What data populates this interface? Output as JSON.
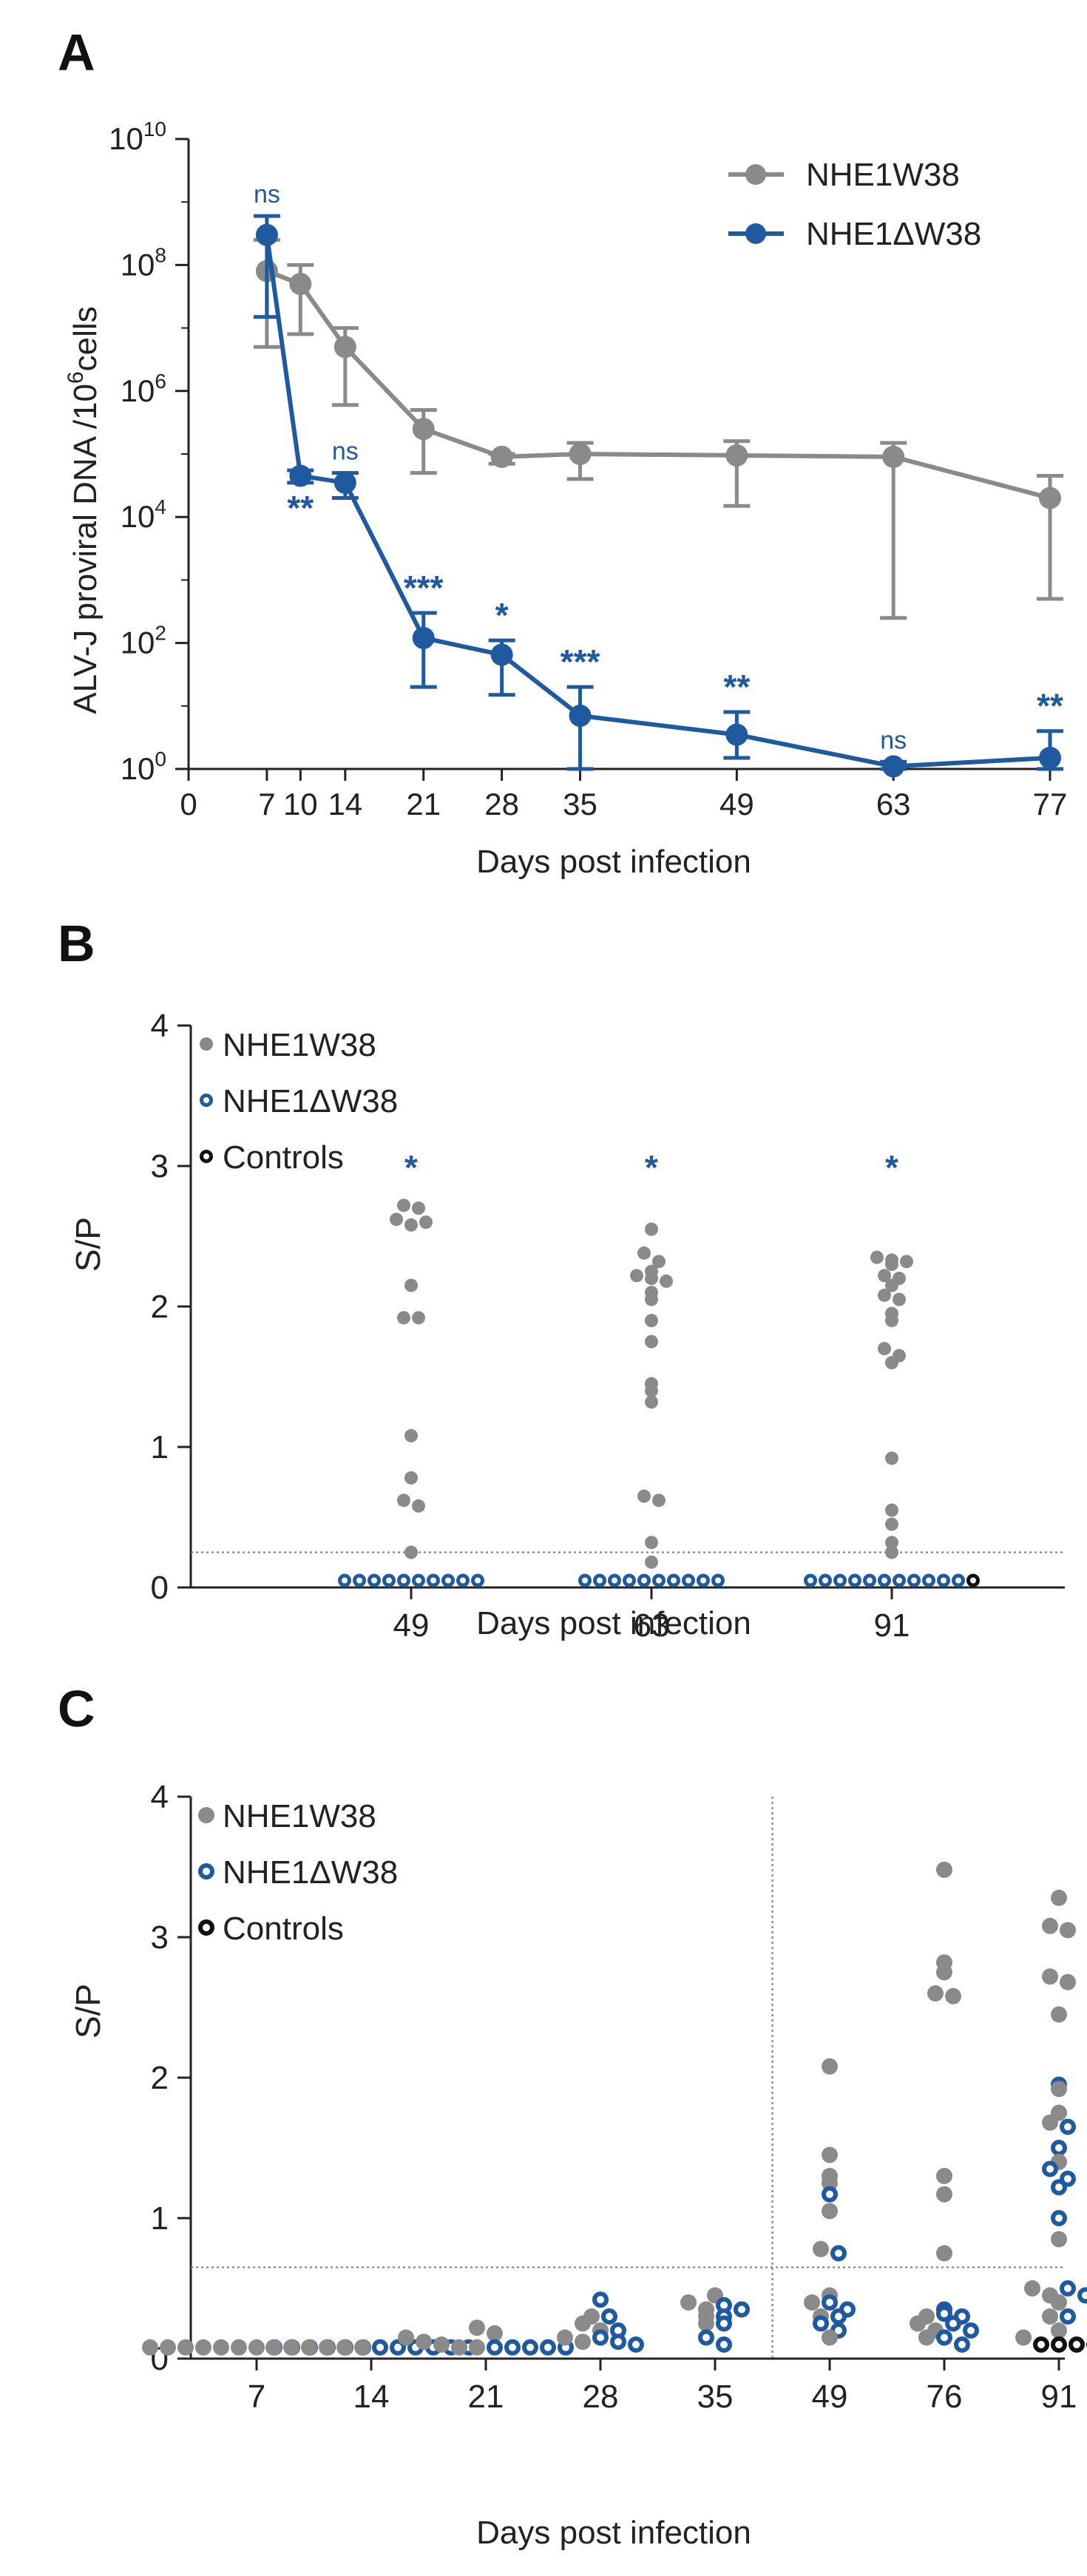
{
  "panels": {
    "A": {
      "label": "A"
    },
    "B": {
      "label": "B"
    },
    "C": {
      "label": "C"
    }
  },
  "colors": {
    "wt": "#8a8a8a",
    "mut": "#1f5aa0",
    "ctrl": "#111111",
    "axis": "#222222",
    "cutoff": "#777777"
  },
  "chart_data": [
    {
      "panel": "A",
      "type": "line",
      "title": "",
      "xlabel": "Days post infection",
      "ylabel": "ALV-J proviral DNA /10",
      "ylabel_sup": "6",
      "ylabel_suffix": "cells",
      "yscale": "log",
      "ylim": [
        1,
        10000000000
      ],
      "xlim": [
        0,
        77
      ],
      "x_ticks": [
        0,
        7,
        10,
        14,
        21,
        28,
        35,
        49,
        63,
        77
      ],
      "x_tick_labels": [
        "0",
        "7",
        "10",
        "14",
        "21",
        "28",
        "35",
        "49",
        "63",
        "77"
      ],
      "y_ticks": [
        {
          "base": "10",
          "exp": "0",
          "value": 1
        },
        {
          "base": "10",
          "exp": "2",
          "value": 100
        },
        {
          "base": "10",
          "exp": "4",
          "value": 10000
        },
        {
          "base": "10",
          "exp": "6",
          "value": 1000000
        },
        {
          "base": "10",
          "exp": "8",
          "value": 100000000
        },
        {
          "base": "10",
          "exp": "10",
          "value": 10000000000
        }
      ],
      "legend_position": "top-right",
      "series": [
        {
          "name": "NHE1W38",
          "x": [
            7,
            10,
            14,
            21,
            28,
            35,
            49,
            63,
            77
          ],
          "values": [
            80000000,
            50000000,
            5000000,
            250000,
            90000,
            100000,
            95000,
            90000,
            20000
          ],
          "err_low": [
            5000000,
            8000000,
            600000,
            50000,
            70000,
            40000,
            15000,
            250,
            500
          ],
          "err_high": [
            250000000,
            100000000,
            10000000,
            500000,
            100000,
            150000,
            160000,
            150000,
            45000
          ]
        },
        {
          "name": "NHE1ΔW38",
          "x": [
            7,
            10,
            14,
            21,
            28,
            35,
            49,
            63,
            77
          ],
          "values": [
            300000000,
            45000,
            35000,
            120,
            65,
            7,
            3.5,
            1.1,
            1.5
          ],
          "err_low": [
            15000000,
            35000,
            20000,
            20,
            15,
            1,
            1.5,
            1,
            1
          ],
          "err_high": [
            600000000,
            55000,
            50000,
            300,
            110,
            20,
            8,
            1.3,
            4
          ]
        }
      ],
      "annotations": [
        {
          "x": 7,
          "text": "ns",
          "side": "above"
        },
        {
          "x": 10,
          "text": "**",
          "side": "below"
        },
        {
          "x": 14,
          "text": "ns",
          "side": "above"
        },
        {
          "x": 21,
          "text": "***",
          "side": "above"
        },
        {
          "x": 28,
          "text": "*",
          "side": "above"
        },
        {
          "x": 35,
          "text": "***",
          "side": "above"
        },
        {
          "x": 49,
          "text": "**",
          "side": "above"
        },
        {
          "x": 63,
          "text": "ns",
          "side": "above"
        },
        {
          "x": 77,
          "text": "**",
          "side": "above"
        }
      ]
    },
    {
      "panel": "B",
      "type": "scatter",
      "title": "",
      "xlabel": "Days post infection",
      "ylabel": "S/P",
      "ylim": [
        0,
        4
      ],
      "y_ticks": [
        "0",
        "1",
        "2",
        "3",
        "4"
      ],
      "categories": [
        "49",
        "63",
        "91"
      ],
      "cutoff": 0.25,
      "legend_position": "top-left",
      "legend": [
        "NHE1W38",
        "NHE1ΔW38",
        "Controls"
      ],
      "significance": [
        "*",
        "*",
        "*"
      ],
      "series": [
        {
          "name": "NHE1W38",
          "values": [
            [
              2.72,
              2.62,
              2.58,
              2.6,
              2.7,
              2.15,
              1.92,
              1.92,
              1.08,
              0.78,
              0.62,
              0.58,
              0.25
            ],
            [
              2.55,
              2.38,
              2.32,
              2.25,
              2.22,
              2.2,
              2.18,
              2.1,
              2.05,
              1.9,
              1.75,
              1.45,
              1.4,
              1.32,
              0.65,
              0.62,
              0.32,
              0.18
            ],
            [
              2.35,
              2.33,
              2.32,
              2.3,
              2.22,
              2.2,
              2.15,
              2.08,
              2.05,
              1.95,
              1.9,
              1.7,
              1.65,
              1.6,
              0.92,
              0.55,
              0.45,
              0.32,
              0.25
            ]
          ]
        },
        {
          "name": "NHE1ΔW38",
          "values": [
            [
              0.05,
              0.05,
              0.05,
              0.05,
              0.05,
              0.05,
              0.05,
              0.05,
              0.05,
              0.05
            ],
            [
              0.05,
              0.05,
              0.05,
              0.05,
              0.05,
              0.05,
              0.05,
              0.05,
              0.05,
              0.05
            ],
            [
              0.05,
              0.05,
              0.05,
              0.05,
              0.05,
              0.05,
              0.05,
              0.05,
              0.05,
              0.05,
              0.05
            ]
          ]
        },
        {
          "name": "Controls",
          "values": [
            [],
            [],
            [
              0.05
            ]
          ]
        }
      ]
    },
    {
      "panel": "C",
      "type": "scatter",
      "title": "",
      "xlabel": "Days post infection",
      "ylabel": "S/P",
      "ylim": [
        0,
        4
      ],
      "y_ticks": [
        "0",
        "1",
        "2",
        "3",
        "4"
      ],
      "categories": [
        "7",
        "14",
        "21",
        "28",
        "35",
        "49",
        "76",
        "91"
      ],
      "cutoff": 0.65,
      "legend_position": "top-left",
      "legend": [
        "NHE1W38",
        "NHE1ΔW38",
        "Controls"
      ],
      "series": [
        {
          "name": "NHE1W38",
          "values": [
            [
              0.08,
              0.08,
              0.08,
              0.08,
              0.08,
              0.08,
              0.08
            ],
            [
              0.08,
              0.08,
              0.08,
              0.08,
              0.08,
              0.08
            ],
            [
              0.22,
              0.18,
              0.15,
              0.12,
              0.1,
              0.08,
              0.08
            ],
            [
              0.3,
              0.25,
              0.2,
              0.15,
              0.12
            ],
            [
              0.45,
              0.4,
              0.35,
              0.3,
              0.25
            ],
            [
              2.08,
              1.45,
              1.3,
              1.25,
              1.05,
              0.78,
              0.45,
              0.4,
              0.3,
              0.15
            ],
            [
              3.48,
              2.82,
              2.75,
              2.6,
              2.58,
              1.3,
              1.17,
              0.75,
              0.3,
              0.25,
              0.2,
              0.15
            ],
            [
              3.28,
              3.08,
              3.05,
              2.72,
              2.68,
              2.45,
              1.92,
              1.75,
              1.68,
              1.4,
              0.85,
              0.5,
              0.45,
              0.4,
              0.3,
              0.2,
              0.15
            ]
          ]
        },
        {
          "name": "NHE1ΔW38",
          "values": [
            [
              0.08,
              0.08,
              0.08,
              0.08,
              0.08,
              0.08
            ],
            [
              0.08,
              0.08,
              0.08,
              0.08,
              0.08,
              0.08
            ],
            [
              0.08,
              0.08,
              0.08,
              0.08,
              0.08
            ],
            [
              0.42,
              0.3,
              0.2,
              0.15,
              0.12,
              0.1
            ],
            [
              0.38,
              0.35,
              0.3,
              0.25,
              0.15,
              0.1
            ],
            [
              1.17,
              0.75,
              0.4,
              0.35,
              0.3,
              0.25,
              0.2
            ],
            [
              0.35,
              0.32,
              0.3,
              0.25,
              0.2,
              0.15,
              0.1
            ],
            [
              1.95,
              1.65,
              1.5,
              1.35,
              1.28,
              1.22,
              1.0,
              0.5,
              0.45,
              0.3
            ]
          ]
        },
        {
          "name": "Controls",
          "values": [
            [],
            [],
            [],
            [],
            [],
            [],
            [],
            [
              0.1,
              0.1,
              0.1,
              0.1
            ]
          ]
        }
      ]
    }
  ]
}
